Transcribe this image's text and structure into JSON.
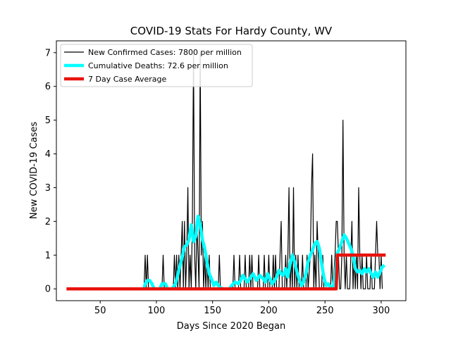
{
  "chart_data": {
    "type": "line",
    "title": "COVID-19 Stats For Hardy County, WV",
    "xlabel": "Days Since 2020 Began",
    "ylabel": "New COVID-19 Cases",
    "xlim": [
      11,
      322
    ],
    "ylim": [
      -0.35,
      7.35
    ],
    "xticks": [
      50,
      100,
      150,
      200,
      250,
      300
    ],
    "yticks": [
      0,
      1,
      2,
      3,
      4,
      5,
      6,
      7
    ],
    "grid": false,
    "legend_position": "top-left",
    "series": [
      {
        "name": "New Confirmed Cases: 7800 per million",
        "color": "#000000",
        "points": [
          [
            20,
            0
          ],
          [
            89,
            0
          ],
          [
            90,
            1
          ],
          [
            91,
            0
          ],
          [
            92,
            1
          ],
          [
            93,
            0
          ],
          [
            105,
            0
          ],
          [
            106,
            1
          ],
          [
            107,
            0
          ],
          [
            115,
            0
          ],
          [
            116,
            1
          ],
          [
            117,
            0
          ],
          [
            118,
            1
          ],
          [
            119,
            0
          ],
          [
            120,
            1
          ],
          [
            121,
            0
          ],
          [
            122,
            1
          ],
          [
            123,
            2
          ],
          [
            124,
            0
          ],
          [
            125,
            2
          ],
          [
            126,
            0
          ],
          [
            127,
            1
          ],
          [
            128,
            3
          ],
          [
            129,
            0
          ],
          [
            130,
            1
          ],
          [
            131,
            0
          ],
          [
            132,
            2
          ],
          [
            133,
            7
          ],
          [
            134,
            1
          ],
          [
            135,
            0
          ],
          [
            136,
            2
          ],
          [
            137,
            1
          ],
          [
            138,
            0
          ],
          [
            139,
            7
          ],
          [
            140,
            1
          ],
          [
            141,
            2
          ],
          [
            142,
            0
          ],
          [
            143,
            1
          ],
          [
            144,
            0
          ],
          [
            145,
            1
          ],
          [
            146,
            0
          ],
          [
            147,
            1
          ],
          [
            148,
            0
          ],
          [
            155,
            0
          ],
          [
            156,
            1
          ],
          [
            157,
            0
          ],
          [
            168,
            0
          ],
          [
            169,
            1
          ],
          [
            170,
            0
          ],
          [
            173,
            0
          ],
          [
            174,
            1
          ],
          [
            175,
            0
          ],
          [
            178,
            0
          ],
          [
            179,
            1
          ],
          [
            180,
            0
          ],
          [
            182,
            0
          ],
          [
            183,
            1
          ],
          [
            184,
            0
          ],
          [
            185,
            1
          ],
          [
            186,
            0
          ],
          [
            190,
            0
          ],
          [
            191,
            1
          ],
          [
            192,
            0
          ],
          [
            195,
            0
          ],
          [
            196,
            1
          ],
          [
            197,
            0
          ],
          [
            199,
            0
          ],
          [
            200,
            1
          ],
          [
            201,
            0
          ],
          [
            203,
            0
          ],
          [
            204,
            1
          ],
          [
            205,
            0
          ],
          [
            206,
            1
          ],
          [
            207,
            0
          ],
          [
            209,
            0
          ],
          [
            210,
            1
          ],
          [
            211,
            2
          ],
          [
            212,
            0
          ],
          [
            214,
            0
          ],
          [
            215,
            1
          ],
          [
            216,
            0
          ],
          [
            217,
            1
          ],
          [
            218,
            3
          ],
          [
            219,
            0
          ],
          [
            220,
            1
          ],
          [
            221,
            0
          ],
          [
            222,
            3
          ],
          [
            223,
            0
          ],
          [
            224,
            1
          ],
          [
            225,
            0
          ],
          [
            226,
            1
          ],
          [
            227,
            0
          ],
          [
            229,
            0
          ],
          [
            230,
            1
          ],
          [
            231,
            0
          ],
          [
            233,
            0
          ],
          [
            234,
            1
          ],
          [
            235,
            0
          ],
          [
            237,
            1
          ],
          [
            238,
            3
          ],
          [
            239,
            4
          ],
          [
            240,
            0
          ],
          [
            241,
            1
          ],
          [
            242,
            0
          ],
          [
            243,
            2
          ],
          [
            244,
            1
          ],
          [
            245,
            0
          ],
          [
            247,
            0
          ],
          [
            248,
            1
          ],
          [
            249,
            0
          ],
          [
            255,
            0
          ],
          [
            256,
            1
          ],
          [
            257,
            0
          ],
          [
            259,
            1
          ],
          [
            260,
            2
          ],
          [
            261,
            2
          ],
          [
            262,
            1
          ],
          [
            263,
            0
          ],
          [
            264,
            0
          ],
          [
            265,
            1
          ],
          [
            266,
            5
          ],
          [
            267,
            1
          ],
          [
            268,
            0
          ],
          [
            269,
            1
          ],
          [
            270,
            0
          ],
          [
            272,
            0
          ],
          [
            273,
            1
          ],
          [
            274,
            2
          ],
          [
            275,
            0
          ],
          [
            276,
            1
          ],
          [
            277,
            0
          ],
          [
            278,
            1
          ],
          [
            279,
            0
          ],
          [
            280,
            3
          ],
          [
            281,
            1
          ],
          [
            282,
            0
          ],
          [
            283,
            1
          ],
          [
            284,
            0
          ],
          [
            286,
            0
          ],
          [
            287,
            1
          ],
          [
            288,
            0
          ],
          [
            290,
            0
          ],
          [
            291,
            1
          ],
          [
            292,
            0
          ],
          [
            294,
            0
          ],
          [
            295,
            1
          ],
          [
            296,
            2
          ],
          [
            297,
            1
          ],
          [
            298,
            1
          ],
          [
            299,
            0
          ],
          [
            300,
            1
          ],
          [
            301,
            0
          ]
        ]
      },
      {
        "name": "Cumulative Deaths: 72.6 per million",
        "color": "#00ffff",
        "points": [
          [
            89,
            0
          ],
          [
            90,
            0.15
          ],
          [
            92,
            0.25
          ],
          [
            94,
            0.25
          ],
          [
            96,
            0.15
          ],
          [
            98,
            0
          ],
          [
            103,
            0
          ],
          [
            105,
            0.15
          ],
          [
            108,
            0.15
          ],
          [
            110,
            0
          ],
          [
            114,
            0
          ],
          [
            117,
            0.15
          ],
          [
            120,
            0.55
          ],
          [
            123,
            0.95
          ],
          [
            125,
            1.25
          ],
          [
            127,
            1.3
          ],
          [
            129,
            1.45
          ],
          [
            131,
            1.9
          ],
          [
            133,
            1.4
          ],
          [
            135,
            1.55
          ],
          [
            137,
            2.15
          ],
          [
            139,
            1.9
          ],
          [
            141,
            1.45
          ],
          [
            143,
            1.2
          ],
          [
            145,
            0.8
          ],
          [
            147,
            0.45
          ],
          [
            149,
            0.3
          ],
          [
            151,
            0.1
          ],
          [
            153,
            0.2
          ],
          [
            156,
            0.05
          ],
          [
            159,
            0
          ],
          [
            165,
            0
          ],
          [
            167,
            0.1
          ],
          [
            170,
            0.2
          ],
          [
            173,
            0.15
          ],
          [
            175,
            0.25
          ],
          [
            177,
            0.4
          ],
          [
            179,
            0.3
          ],
          [
            181,
            0.2
          ],
          [
            184,
            0.35
          ],
          [
            186,
            0.45
          ],
          [
            189,
            0.25
          ],
          [
            192,
            0.4
          ],
          [
            195,
            0.3
          ],
          [
            197,
            0.2
          ],
          [
            199,
            0.45
          ],
          [
            201,
            0.3
          ],
          [
            203,
            0.15
          ],
          [
            205,
            0.25
          ],
          [
            207,
            0.35
          ],
          [
            209,
            0.55
          ],
          [
            211,
            0.45
          ],
          [
            213,
            0.4
          ],
          [
            215,
            0.6
          ],
          [
            217,
            0.35
          ],
          [
            219,
            0.75
          ],
          [
            221,
            1.0
          ],
          [
            223,
            0.8
          ],
          [
            225,
            0.5
          ],
          [
            227,
            0.3
          ],
          [
            229,
            0.1
          ],
          [
            231,
            0.2
          ],
          [
            233,
            0.45
          ],
          [
            235,
            0.8
          ],
          [
            237,
            1.0
          ],
          [
            239,
            1.15
          ],
          [
            241,
            1.35
          ],
          [
            243,
            1.4
          ],
          [
            245,
            1.2
          ],
          [
            247,
            0.75
          ],
          [
            249,
            0.35
          ],
          [
            251,
            0.1
          ],
          [
            253,
            0.15
          ],
          [
            255,
            0.05
          ],
          [
            257,
            0.0
          ],
          [
            259,
            0.4
          ],
          [
            261,
            1.05
          ],
          [
            263,
            1.2
          ],
          [
            265,
            1.4
          ],
          [
            267,
            1.6
          ],
          [
            269,
            1.5
          ],
          [
            271,
            1.35
          ],
          [
            273,
            1.2
          ],
          [
            275,
            1.0
          ],
          [
            277,
            0.6
          ],
          [
            279,
            0.5
          ],
          [
            281,
            0.55
          ],
          [
            283,
            0.45
          ],
          [
            285,
            0.6
          ],
          [
            287,
            0.5
          ],
          [
            289,
            0.6
          ],
          [
            291,
            0.45
          ],
          [
            293,
            0.35
          ],
          [
            295,
            0.5
          ],
          [
            297,
            0.35
          ],
          [
            299,
            0.5
          ],
          [
            301,
            0.65
          ],
          [
            303,
            0.7
          ]
        ]
      },
      {
        "name": "7 Day Case Average",
        "color": "#e8120c",
        "points": [
          [
            20,
            0
          ],
          [
            260,
            0
          ],
          [
            261,
            1
          ],
          [
            304,
            1
          ]
        ]
      }
    ]
  }
}
